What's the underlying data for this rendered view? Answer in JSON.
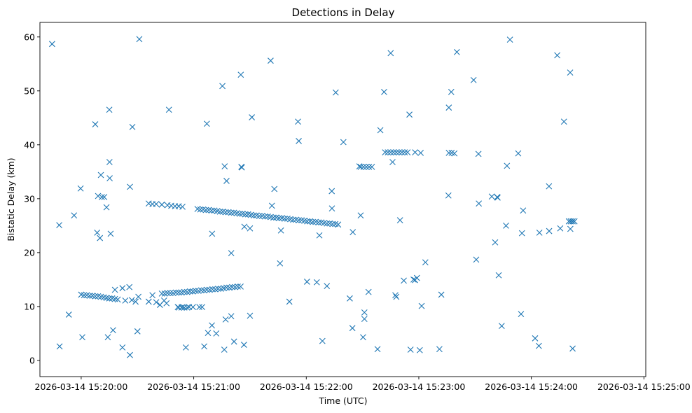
{
  "chart_data": {
    "type": "scatter",
    "title": "Detections in Delay",
    "xlabel": "Time (UTC)",
    "ylabel": "Bistatic Delay (km)",
    "marker": "x",
    "color": "#1f77b4",
    "x_unit": "seconds since 2026-03-14 15:20:00 UTC",
    "xlim": [
      -22,
      301
    ],
    "ylim": [
      -3,
      62.7
    ],
    "x_ticks": [
      {
        "value": 0,
        "label": "2026-03-14 15:20:00"
      },
      {
        "value": 60,
        "label": "2026-03-14 15:21:00"
      },
      {
        "value": 120,
        "label": "2026-03-14 15:22:00"
      },
      {
        "value": 180,
        "label": "2026-03-14 15:23:00"
      },
      {
        "value": 240,
        "label": "2026-03-14 15:24:00"
      },
      {
        "value": 300,
        "label": "2026-03-14 15:25:00"
      }
    ],
    "y_ticks": [
      {
        "value": 0,
        "label": "0"
      },
      {
        "value": 10,
        "label": "10"
      },
      {
        "value": 20,
        "label": "20"
      },
      {
        "value": 30,
        "label": "30"
      },
      {
        "value": 40,
        "label": "40"
      },
      {
        "value": 50,
        "label": "50"
      },
      {
        "value": 60,
        "label": "60"
      }
    ],
    "series": [
      {
        "name": "Detections",
        "points": [
          [
            -15.5,
            58.7
          ],
          [
            -11.7,
            25.1
          ],
          [
            -11.5,
            2.6
          ],
          [
            -6.6,
            8.5
          ],
          [
            -3.8,
            26.9
          ],
          [
            -0.3,
            31.9
          ],
          [
            0.6,
            4.3
          ],
          [
            7.5,
            43.8
          ],
          [
            8.5,
            23.7
          ],
          [
            9.0,
            30.5
          ],
          [
            10.0,
            22.7
          ],
          [
            10.5,
            34.4
          ],
          [
            11.0,
            30.3
          ],
          [
            12.3,
            30.3
          ],
          [
            13.5,
            28.4
          ],
          [
            14.2,
            4.3
          ],
          [
            15.0,
            46.5
          ],
          [
            15.1,
            36.8
          ],
          [
            15.2,
            33.8
          ],
          [
            15.7,
            23.5
          ],
          [
            17.0,
            5.6
          ],
          [
            18.0,
            13.1
          ],
          [
            22.0,
            2.4
          ],
          [
            22.0,
            13.4
          ],
          [
            23.5,
            11.1
          ],
          [
            25.7,
            13.6
          ],
          [
            26.0,
            1.0
          ],
          [
            26.0,
            32.2
          ],
          [
            27.0,
            11.2
          ],
          [
            27.3,
            43.3
          ],
          [
            29.0,
            10.9
          ],
          [
            30.0,
            5.4
          ],
          [
            30.5,
            11.8
          ],
          [
            31.0,
            59.6
          ],
          [
            36.0,
            10.9
          ],
          [
            38.0,
            12.1
          ],
          [
            40.0,
            10.8
          ],
          [
            42.0,
            10.3
          ],
          [
            44.2,
            11.1
          ],
          [
            45.5,
            10.6
          ],
          [
            46.8,
            46.5
          ],
          [
            51.5,
            9.9
          ],
          [
            54.0,
            9.9
          ],
          [
            55.8,
            2.4
          ],
          [
            57.5,
            9.9
          ],
          [
            59.6,
            9.9
          ],
          [
            63.0,
            9.9
          ],
          [
            64.5,
            9.9
          ],
          [
            65.6,
            2.6
          ],
          [
            67.0,
            43.9
          ],
          [
            67.6,
            5.1
          ],
          [
            69.7,
            6.5
          ],
          [
            69.8,
            23.5
          ],
          [
            72.0,
            5.0
          ],
          [
            75.3,
            50.9
          ],
          [
            76.3,
            2.0
          ],
          [
            76.5,
            36.0
          ],
          [
            77.0,
            7.6
          ],
          [
            77.5,
            33.3
          ],
          [
            80.0,
            19.9
          ],
          [
            80.0,
            8.2
          ],
          [
            81.5,
            3.5
          ],
          [
            85.1,
            53.0
          ],
          [
            85.4,
            35.9
          ],
          [
            85.6,
            35.8
          ],
          [
            86.8,
            2.9
          ],
          [
            87.0,
            24.8
          ],
          [
            90.0,
            24.5
          ],
          [
            90.0,
            8.3
          ],
          [
            91.0,
            45.1
          ],
          [
            101.0,
            55.6
          ],
          [
            101.7,
            28.7
          ],
          [
            103.0,
            31.8
          ],
          [
            106.0,
            18.0
          ],
          [
            106.5,
            24.1
          ],
          [
            111.0,
            10.9
          ],
          [
            115.6,
            44.3
          ],
          [
            116.0,
            40.7
          ],
          [
            120.4,
            14.6
          ],
          [
            125.6,
            14.5
          ],
          [
            127.0,
            23.2
          ],
          [
            128.6,
            3.6
          ],
          [
            131.0,
            13.8
          ],
          [
            133.6,
            31.4
          ],
          [
            133.7,
            28.2
          ],
          [
            135.7,
            49.7
          ],
          [
            139.8,
            40.5
          ],
          [
            143.2,
            11.5
          ],
          [
            144.6,
            6.0
          ],
          [
            144.8,
            23.8
          ],
          [
            148.3,
            36.0
          ],
          [
            149.0,
            26.9
          ],
          [
            150.3,
            4.3
          ],
          [
            151.0,
            8.9
          ],
          [
            151.0,
            7.7
          ],
          [
            153.2,
            12.7
          ],
          [
            158.0,
            2.1
          ],
          [
            159.5,
            42.7
          ],
          [
            161.5,
            49.8
          ],
          [
            165.0,
            57.0
          ],
          [
            166.0,
            36.8
          ],
          [
            167.5,
            12.1
          ],
          [
            168.0,
            11.8
          ],
          [
            170.0,
            26.0
          ],
          [
            172.0,
            14.8
          ],
          [
            175.0,
            45.6
          ],
          [
            175.6,
            2.0
          ],
          [
            177.2,
            15.0
          ],
          [
            178.0,
            14.9
          ],
          [
            179.0,
            15.3
          ],
          [
            180.5,
            1.9
          ],
          [
            181.5,
            10.1
          ],
          [
            183.5,
            18.2
          ],
          [
            191.0,
            2.1
          ],
          [
            192.0,
            12.2
          ],
          [
            195.8,
            30.6
          ],
          [
            196.0,
            46.9
          ],
          [
            197.3,
            49.8
          ],
          [
            200.3,
            57.2
          ],
          [
            209.2,
            52.0
          ],
          [
            210.6,
            18.7
          ],
          [
            211.8,
            38.3
          ],
          [
            212.0,
            29.1
          ],
          [
            218.9,
            30.4
          ],
          [
            220.7,
            21.9
          ],
          [
            221.8,
            30.3
          ],
          [
            222.0,
            30.2
          ],
          [
            222.6,
            15.8
          ],
          [
            224.2,
            6.4
          ],
          [
            226.5,
            25.0
          ],
          [
            227.0,
            36.1
          ],
          [
            228.6,
            59.5
          ],
          [
            233.0,
            38.4
          ],
          [
            234.5,
            8.6
          ],
          [
            235.0,
            23.6
          ],
          [
            235.6,
            27.8
          ],
          [
            242.0,
            4.1
          ],
          [
            244.0,
            2.7
          ],
          [
            244.3,
            23.7
          ],
          [
            249.4,
            32.3
          ],
          [
            249.5,
            24.0
          ],
          [
            253.8,
            56.6
          ],
          [
            255.4,
            24.5
          ],
          [
            257.4,
            44.3
          ],
          [
            260.7,
            53.4
          ],
          [
            260.8,
            24.4
          ],
          [
            262.0,
            2.2
          ],
          [
            0.0,
            12.2
          ],
          [
            1.5,
            12.1
          ],
          [
            3.0,
            12.1
          ],
          [
            4.5,
            12.0
          ],
          [
            6.0,
            12.0
          ],
          [
            7.5,
            11.9
          ],
          [
            9.0,
            11.9
          ],
          [
            10.5,
            11.8
          ],
          [
            12.0,
            11.7
          ],
          [
            13.5,
            11.6
          ],
          [
            15.0,
            11.5
          ],
          [
            16.5,
            11.5
          ],
          [
            18.0,
            11.4
          ],
          [
            19.5,
            11.3
          ],
          [
            43.0,
            12.4
          ],
          [
            44.5,
            12.4
          ],
          [
            46.0,
            12.5
          ],
          [
            47.5,
            12.5
          ],
          [
            49.0,
            12.5
          ],
          [
            50.5,
            12.6
          ],
          [
            52.0,
            12.6
          ],
          [
            53.5,
            12.6
          ],
          [
            55.0,
            12.7
          ],
          [
            56.5,
            12.7
          ],
          [
            58.0,
            12.8
          ],
          [
            59.5,
            12.8
          ],
          [
            61.0,
            12.9
          ],
          [
            62.5,
            12.9
          ],
          [
            64.0,
            13.0
          ],
          [
            65.5,
            13.0
          ],
          [
            67.0,
            13.1
          ],
          [
            68.5,
            13.1
          ],
          [
            70.0,
            13.2
          ],
          [
            71.5,
            13.2
          ],
          [
            73.0,
            13.3
          ],
          [
            74.5,
            13.3
          ],
          [
            76.0,
            13.4
          ],
          [
            77.5,
            13.5
          ],
          [
            79.0,
            13.5
          ],
          [
            80.5,
            13.6
          ],
          [
            82.0,
            13.6
          ],
          [
            83.5,
            13.7
          ],
          [
            85.0,
            13.7
          ],
          [
            52.0,
            9.8
          ],
          [
            53.5,
            9.8
          ],
          [
            55.0,
            9.8
          ],
          [
            56.5,
            9.8
          ],
          [
            36.0,
            29.1
          ],
          [
            38.0,
            29.0
          ],
          [
            40.0,
            29.0
          ],
          [
            43.0,
            28.9
          ],
          [
            46.0,
            28.8
          ],
          [
            48.0,
            28.7
          ],
          [
            50.0,
            28.6
          ],
          [
            52.0,
            28.6
          ],
          [
            54.0,
            28.5
          ],
          [
            62.0,
            28.1
          ],
          [
            63.5,
            28.0
          ],
          [
            65.0,
            28.0
          ],
          [
            66.5,
            27.9
          ],
          [
            68.0,
            27.9
          ],
          [
            69.5,
            27.8
          ],
          [
            71.0,
            27.8
          ],
          [
            72.5,
            27.7
          ],
          [
            74.0,
            27.6
          ],
          [
            75.5,
            27.6
          ],
          [
            77.0,
            27.5
          ],
          [
            78.5,
            27.5
          ],
          [
            80.0,
            27.4
          ],
          [
            81.5,
            27.4
          ],
          [
            83.0,
            27.3
          ],
          [
            84.5,
            27.2
          ],
          [
            86.0,
            27.2
          ],
          [
            87.5,
            27.1
          ],
          [
            89.0,
            27.1
          ],
          [
            90.5,
            27.0
          ],
          [
            92.0,
            26.9
          ],
          [
            93.5,
            26.9
          ],
          [
            95.0,
            26.8
          ],
          [
            96.5,
            26.8
          ],
          [
            98.0,
            26.7
          ],
          [
            99.5,
            26.7
          ],
          [
            101.0,
            26.6
          ],
          [
            102.5,
            26.5
          ],
          [
            104.0,
            26.5
          ],
          [
            105.5,
            26.4
          ],
          [
            107.0,
            26.4
          ],
          [
            108.5,
            26.3
          ],
          [
            110.0,
            26.3
          ],
          [
            111.5,
            26.2
          ],
          [
            113.0,
            26.1
          ],
          [
            114.5,
            26.1
          ],
          [
            116.0,
            26.0
          ],
          [
            117.5,
            26.0
          ],
          [
            119.0,
            25.9
          ],
          [
            120.5,
            25.8
          ],
          [
            122.0,
            25.8
          ],
          [
            123.5,
            25.7
          ],
          [
            125.0,
            25.7
          ],
          [
            126.5,
            25.6
          ],
          [
            128.0,
            25.6
          ],
          [
            129.5,
            25.5
          ],
          [
            131.0,
            25.4
          ],
          [
            132.5,
            25.4
          ],
          [
            134.0,
            25.3
          ],
          [
            135.5,
            25.3
          ],
          [
            137.0,
            25.2
          ],
          [
            149.0,
            35.9
          ],
          [
            150.5,
            35.9
          ],
          [
            152.0,
            35.9
          ],
          [
            153.5,
            35.9
          ],
          [
            155.0,
            35.9
          ],
          [
            162.0,
            38.6
          ],
          [
            163.5,
            38.6
          ],
          [
            165.0,
            38.6
          ],
          [
            166.5,
            38.6
          ],
          [
            168.0,
            38.6
          ],
          [
            169.5,
            38.6
          ],
          [
            171.0,
            38.6
          ],
          [
            172.5,
            38.6
          ],
          [
            174.0,
            38.6
          ],
          [
            178.0,
            38.6
          ],
          [
            181.0,
            38.5
          ],
          [
            196.0,
            38.5
          ],
          [
            197.5,
            38.5
          ],
          [
            199.0,
            38.4
          ],
          [
            260.0,
            25.8
          ],
          [
            261.0,
            25.8
          ],
          [
            262.0,
            25.8
          ],
          [
            263.0,
            25.8
          ]
        ]
      }
    ]
  }
}
